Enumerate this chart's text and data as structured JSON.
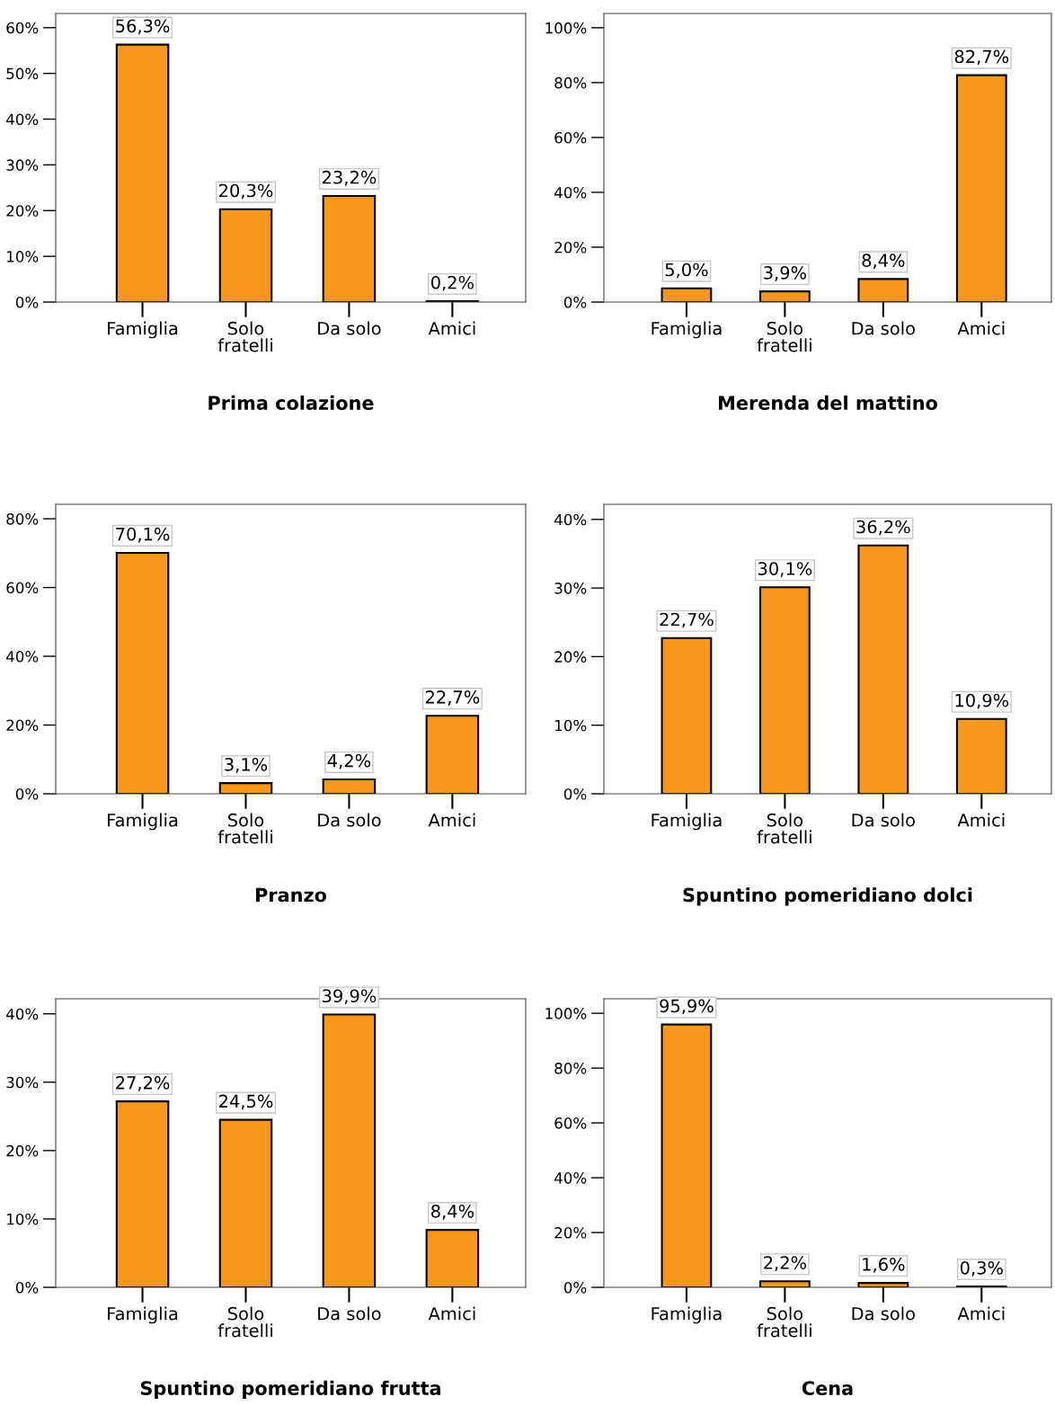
{
  "chart_data": [
    {
      "type": "bar",
      "title": "Prima colazione",
      "categories": [
        "Famiglia",
        "Solo\nfratelli",
        "Da solo",
        "Amici"
      ],
      "values": [
        56.3,
        20.3,
        23.2,
        0.2
      ],
      "value_labels": [
        "56,3%",
        "20,3%",
        "23,2%",
        "0,2%"
      ],
      "color": "#f7981d",
      "ylim": [
        0,
        63.1
      ],
      "yticks": [
        {
          "value": 0,
          "label": "0%"
        },
        {
          "value": 10,
          "label": "10%"
        },
        {
          "value": 20,
          "label": "20%"
        },
        {
          "value": 30,
          "label": "30%"
        },
        {
          "value": 40,
          "label": "40%"
        },
        {
          "value": 50,
          "label": "50%"
        },
        {
          "value": 60,
          "label": "60%"
        }
      ],
      "grid": false
    },
    {
      "type": "bar",
      "title": "Merenda del mattino",
      "categories": [
        "Famiglia",
        "Solo\nfratelli",
        "Da solo",
        "Amici"
      ],
      "values": [
        5.0,
        3.9,
        8.4,
        82.7
      ],
      "value_labels": [
        "5,0%",
        "3,9%",
        "8,4%",
        "82,7%"
      ],
      "color": "#f7981d",
      "ylim": [
        0,
        105.2
      ],
      "yticks": [
        {
          "value": 0,
          "label": "0%"
        },
        {
          "value": 20,
          "label": "20%"
        },
        {
          "value": 40,
          "label": "40%"
        },
        {
          "value": 60,
          "label": "60%"
        },
        {
          "value": 80,
          "label": "80%"
        },
        {
          "value": 100,
          "label": "100%"
        }
      ],
      "grid": false
    },
    {
      "type": "bar",
      "title": "Pranzo",
      "categories": [
        "Famiglia",
        "Solo\nfratelli",
        "Da solo",
        "Amici"
      ],
      "values": [
        70.1,
        3.1,
        4.2,
        22.7
      ],
      "value_labels": [
        "70,1%",
        "3,1%",
        "4,2%",
        "22,7%"
      ],
      "color": "#f7981d",
      "ylim": [
        0,
        84.2
      ],
      "yticks": [
        {
          "value": 0,
          "label": "0%"
        },
        {
          "value": 20,
          "label": "20%"
        },
        {
          "value": 40,
          "label": "40%"
        },
        {
          "value": 60,
          "label": "60%"
        },
        {
          "value": 80,
          "label": "80%"
        }
      ],
      "grid": false
    },
    {
      "type": "bar",
      "title": "Spuntino pomeridiano dolci",
      "categories": [
        "Famiglia",
        "Solo\nfratelli",
        "Da solo",
        "Amici"
      ],
      "values": [
        22.7,
        30.1,
        36.2,
        10.9
      ],
      "value_labels": [
        "22,7%",
        "30,1%",
        "36,2%",
        "10,9%"
      ],
      "color": "#f7981d",
      "ylim": [
        0,
        42.2
      ],
      "yticks": [
        {
          "value": 0,
          "label": "0%"
        },
        {
          "value": 10,
          "label": "10%"
        },
        {
          "value": 20,
          "label": "20%"
        },
        {
          "value": 30,
          "label": "30%"
        },
        {
          "value": 40,
          "label": "40%"
        }
      ],
      "grid": false
    },
    {
      "type": "bar",
      "title": "Spuntino pomeridiano frutta",
      "categories": [
        "Famiglia",
        "Solo\nfratelli",
        "Da solo",
        "Amici"
      ],
      "values": [
        27.2,
        24.5,
        39.9,
        8.4
      ],
      "value_labels": [
        "27,2%",
        "24,5%",
        "39,9%",
        "8,4%"
      ],
      "color": "#f7981d",
      "ylim": [
        0,
        42.2
      ],
      "yticks": [
        {
          "value": 0,
          "label": "0%"
        },
        {
          "value": 10,
          "label": "10%"
        },
        {
          "value": 20,
          "label": "20%"
        },
        {
          "value": 30,
          "label": "30%"
        },
        {
          "value": 40,
          "label": "40%"
        }
      ],
      "grid": false
    },
    {
      "type": "bar",
      "title": "Cena",
      "categories": [
        "Famiglia",
        "Solo\nfratelli",
        "Da solo",
        "Amici"
      ],
      "values": [
        95.9,
        2.2,
        1.6,
        0.3
      ],
      "value_labels": [
        "95,9%",
        "2,2%",
        "1,6%",
        "0,3%"
      ],
      "color": "#f7981d",
      "ylim": [
        0,
        105.3
      ],
      "yticks": [
        {
          "value": 0,
          "label": "0%"
        },
        {
          "value": 20,
          "label": "20%"
        },
        {
          "value": 40,
          "label": "40%"
        },
        {
          "value": 60,
          "label": "60%"
        },
        {
          "value": 80,
          "label": "80%"
        },
        {
          "value": 100,
          "label": "100%"
        }
      ],
      "grid": false
    }
  ]
}
